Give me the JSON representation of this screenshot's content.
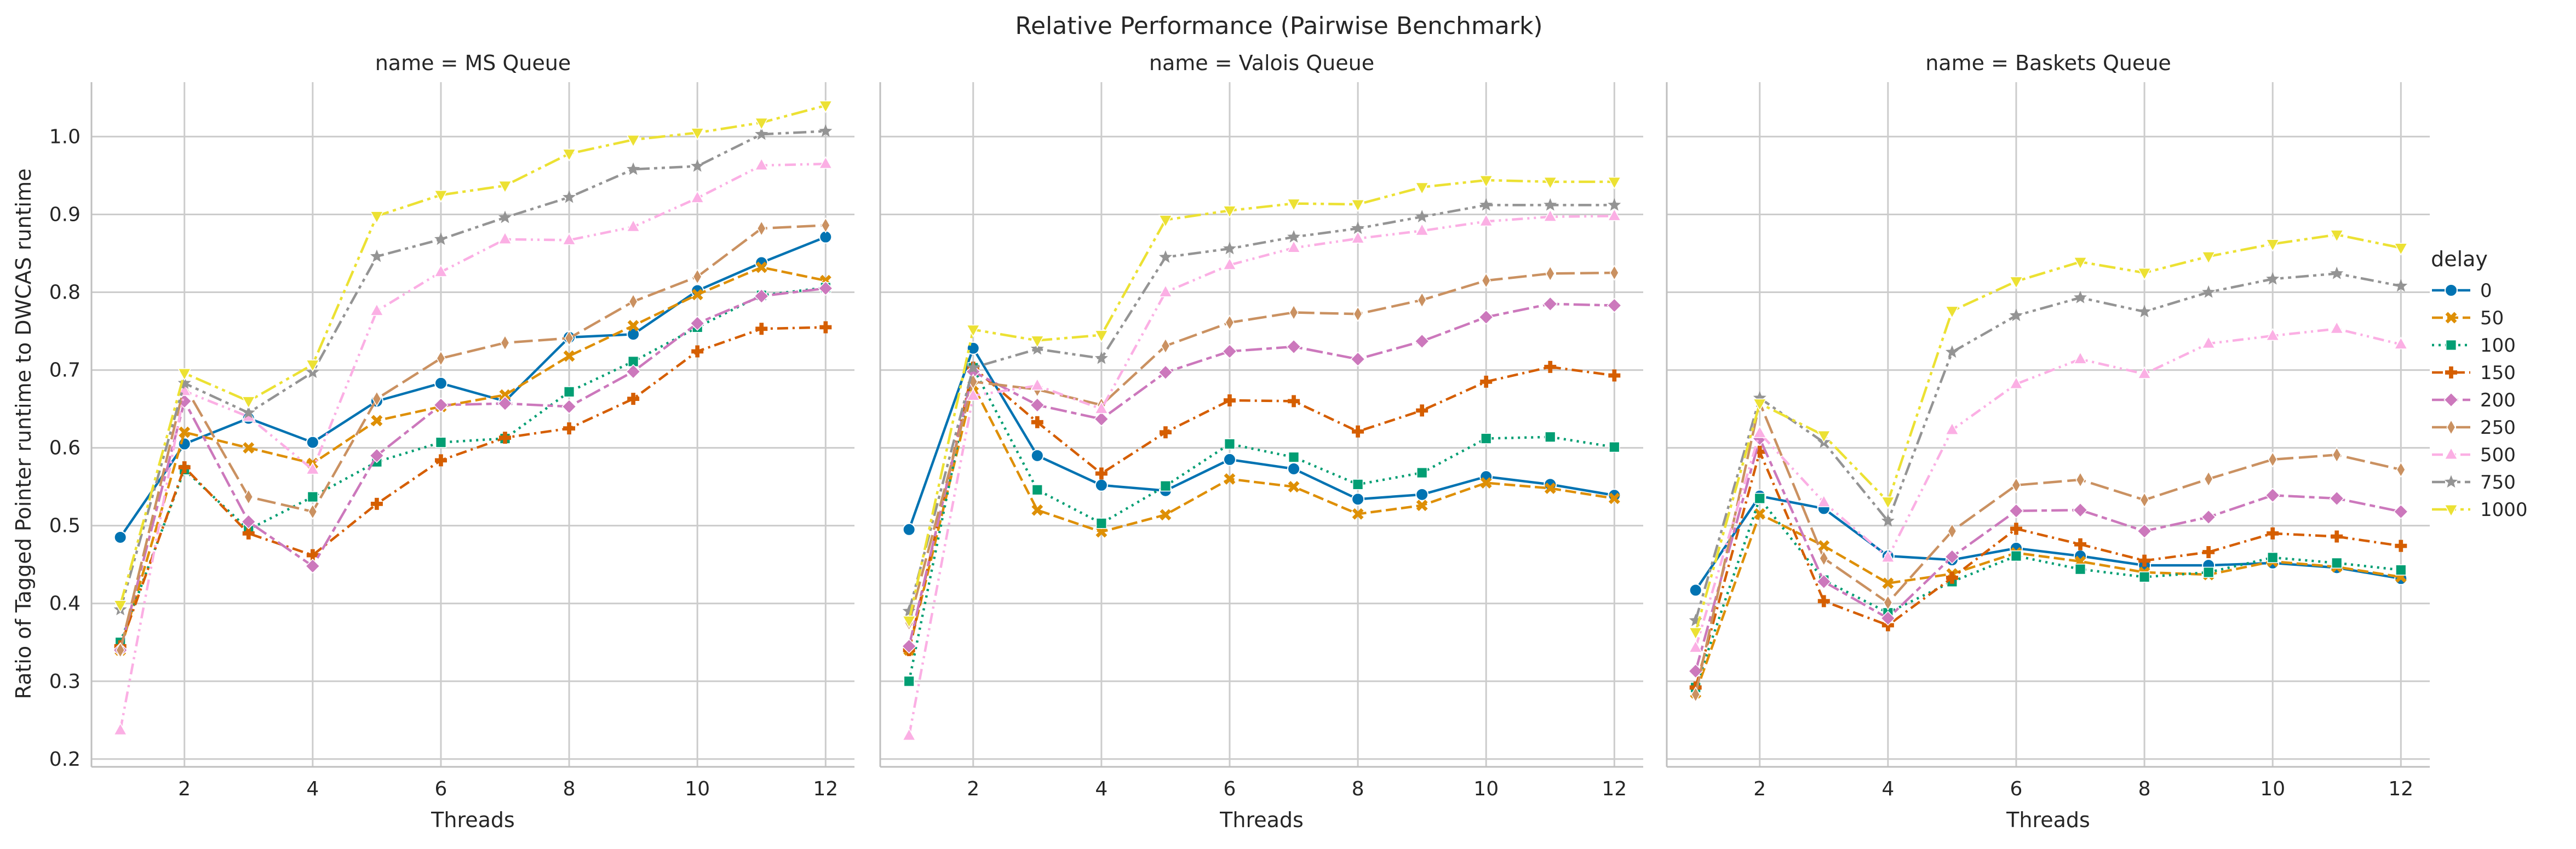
{
  "chart_data": {
    "type": "line",
    "title": "Relative Performance (Pairwise Benchmark)",
    "xlabel": "Threads",
    "ylabel": "Ratio of Tagged Pointer runtime to DWCAS runtime",
    "xlim": [
      0.55,
      12.45
    ],
    "ylim": [
      0.19,
      1.07
    ],
    "xticks": [
      2,
      4,
      6,
      8,
      10,
      12
    ],
    "yticks": [
      0.2,
      0.3,
      0.4,
      0.5,
      0.6,
      0.7,
      0.8,
      0.9,
      1.0
    ],
    "ytick_labels": [
      "0.2",
      "0.3",
      "0.4",
      "0.5",
      "0.6",
      "0.7",
      "0.8",
      "0.9",
      "1.0"
    ],
    "grid": true,
    "legend": {
      "title": "delay",
      "position": "right",
      "entries": [
        "0",
        "50",
        "100",
        "150",
        "200",
        "250",
        "500",
        "750",
        "1000"
      ]
    },
    "series_style": [
      {
        "name": "0",
        "color": "#0173b2",
        "dash": "solid",
        "marker": "circle"
      },
      {
        "name": "50",
        "color": "#de8f05",
        "dash": "dashed",
        "marker": "x"
      },
      {
        "name": "100",
        "color": "#029e73",
        "dash": "dotted",
        "marker": "square"
      },
      {
        "name": "150",
        "color": "#d55e00",
        "dash": "dashdot",
        "marker": "plus"
      },
      {
        "name": "200",
        "color": "#cc78bc",
        "dash": "long-short",
        "marker": "diamond"
      },
      {
        "name": "250",
        "color": "#ca9161",
        "dash": "long-dash",
        "marker": "thin-diamond"
      },
      {
        "name": "500",
        "color": "#fbafe4",
        "dash": "dash-dot-long",
        "marker": "triangle-up"
      },
      {
        "name": "750",
        "color": "#949494",
        "dash": "dash-dot-dot",
        "marker": "star"
      },
      {
        "name": "1000",
        "color": "#ece133",
        "dash": "dash-dot-dot-long",
        "marker": "triangle-down"
      }
    ],
    "x": [
      1,
      2,
      3,
      4,
      5,
      6,
      7,
      8,
      9,
      10,
      11,
      12
    ],
    "panels": [
      {
        "title": "name = MS Queue",
        "series": [
          {
            "name": "0",
            "values": [
              0.485,
              0.605,
              0.638,
              0.607,
              0.66,
              0.683,
              0.66,
              0.742,
              0.746,
              0.802,
              0.838,
              0.871
            ]
          },
          {
            "name": "50",
            "values": [
              0.34,
              0.62,
              0.6,
              0.58,
              0.635,
              0.653,
              0.668,
              0.718,
              0.757,
              0.797,
              0.832,
              0.815
            ]
          },
          {
            "name": "100",
            "values": [
              0.35,
              0.572,
              0.495,
              0.537,
              0.582,
              0.607,
              0.612,
              0.672,
              0.711,
              0.755,
              0.796,
              0.806
            ]
          },
          {
            "name": "150",
            "values": [
              0.345,
              0.575,
              0.49,
              0.462,
              0.528,
              0.584,
              0.613,
              0.625,
              0.663,
              0.724,
              0.753,
              0.755
            ]
          },
          {
            "name": "200",
            "values": [
              0.34,
              0.66,
              0.505,
              0.448,
              0.59,
              0.655,
              0.657,
              0.653,
              0.698,
              0.76,
              0.795,
              0.805
            ]
          },
          {
            "name": "250",
            "values": [
              0.34,
              0.68,
              0.537,
              0.518,
              0.663,
              0.715,
              0.735,
              0.741,
              0.788,
              0.82,
              0.882,
              0.886
            ]
          },
          {
            "name": "500",
            "values": [
              0.237,
              0.673,
              0.64,
              0.572,
              0.776,
              0.826,
              0.868,
              0.867,
              0.884,
              0.921,
              0.963,
              0.965
            ]
          },
          {
            "name": "750",
            "values": [
              0.392,
              0.683,
              0.645,
              0.697,
              0.846,
              0.868,
              0.896,
              0.922,
              0.958,
              0.962,
              1.003,
              1.007
            ]
          },
          {
            "name": "1000",
            "values": [
              0.398,
              0.696,
              0.66,
              0.707,
              0.898,
              0.925,
              0.937,
              0.978,
              0.996,
              1.005,
              1.018,
              1.04
            ]
          }
        ]
      },
      {
        "title": "name = Valois Queue",
        "series": [
          {
            "name": "0",
            "values": [
              0.495,
              0.728,
              0.59,
              0.552,
              0.545,
              0.585,
              0.573,
              0.534,
              0.54,
              0.563,
              0.553,
              0.539
            ]
          },
          {
            "name": "50",
            "values": [
              0.34,
              0.68,
              0.52,
              0.492,
              0.514,
              0.56,
              0.55,
              0.515,
              0.526,
              0.555,
              0.548,
              0.535
            ]
          },
          {
            "name": "100",
            "values": [
              0.3,
              0.703,
              0.546,
              0.503,
              0.551,
              0.605,
              0.588,
              0.553,
              0.568,
              0.612,
              0.614,
              0.601
            ]
          },
          {
            "name": "150",
            "values": [
              0.34,
              0.703,
              0.633,
              0.567,
              0.62,
              0.661,
              0.66,
              0.621,
              0.648,
              0.685,
              0.704,
              0.693
            ]
          },
          {
            "name": "200",
            "values": [
              0.345,
              0.698,
              0.655,
              0.637,
              0.697,
              0.724,
              0.73,
              0.714,
              0.737,
              0.768,
              0.785,
              0.783
            ]
          },
          {
            "name": "250",
            "values": [
              0.375,
              0.685,
              0.675,
              0.655,
              0.731,
              0.761,
              0.774,
              0.772,
              0.79,
              0.815,
              0.824,
              0.825
            ]
          },
          {
            "name": "500",
            "values": [
              0.23,
              0.667,
              0.68,
              0.65,
              0.8,
              0.835,
              0.857,
              0.869,
              0.879,
              0.891,
              0.897,
              0.898
            ]
          },
          {
            "name": "750",
            "values": [
              0.39,
              0.703,
              0.727,
              0.715,
              0.845,
              0.856,
              0.871,
              0.882,
              0.897,
              0.912,
              0.912,
              0.912
            ]
          },
          {
            "name": "1000",
            "values": [
              0.378,
              0.752,
              0.738,
              0.745,
              0.893,
              0.905,
              0.914,
              0.913,
              0.935,
              0.944,
              0.942,
              0.942
            ]
          }
        ]
      },
      {
        "title": "name = Baskets Queue",
        "series": [
          {
            "name": "0",
            "values": [
              0.417,
              0.538,
              0.522,
              0.461,
              0.456,
              0.471,
              0.461,
              0.449,
              0.449,
              0.452,
              0.446,
              0.432
            ]
          },
          {
            "name": "50",
            "values": [
              0.285,
              0.515,
              0.474,
              0.426,
              0.438,
              0.465,
              0.454,
              0.44,
              0.437,
              0.454,
              0.447,
              0.434
            ]
          },
          {
            "name": "100",
            "values": [
              0.292,
              0.535,
              0.43,
              0.388,
              0.428,
              0.461,
              0.444,
              0.434,
              0.44,
              0.459,
              0.452,
              0.443
            ]
          },
          {
            "name": "150",
            "values": [
              0.292,
              0.595,
              0.403,
              0.372,
              0.433,
              0.496,
              0.476,
              0.455,
              0.466,
              0.49,
              0.486,
              0.474
            ]
          },
          {
            "name": "200",
            "values": [
              0.313,
              0.612,
              0.428,
              0.381,
              0.46,
              0.519,
              0.52,
              0.493,
              0.511,
              0.539,
              0.535,
              0.518
            ]
          },
          {
            "name": "250",
            "values": [
              0.283,
              0.658,
              0.458,
              0.401,
              0.493,
              0.552,
              0.559,
              0.533,
              0.56,
              0.585,
              0.591,
              0.572
            ]
          },
          {
            "name": "500",
            "values": [
              0.343,
              0.619,
              0.53,
              0.459,
              0.623,
              0.682,
              0.714,
              0.695,
              0.734,
              0.744,
              0.753,
              0.733
            ]
          },
          {
            "name": "750",
            "values": [
              0.378,
              0.664,
              0.607,
              0.506,
              0.723,
              0.77,
              0.793,
              0.775,
              0.8,
              0.817,
              0.824,
              0.808
            ]
          },
          {
            "name": "1000",
            "values": [
              0.363,
              0.657,
              0.616,
              0.531,
              0.776,
              0.814,
              0.839,
              0.825,
              0.846,
              0.862,
              0.874,
              0.857
            ]
          }
        ]
      }
    ]
  }
}
